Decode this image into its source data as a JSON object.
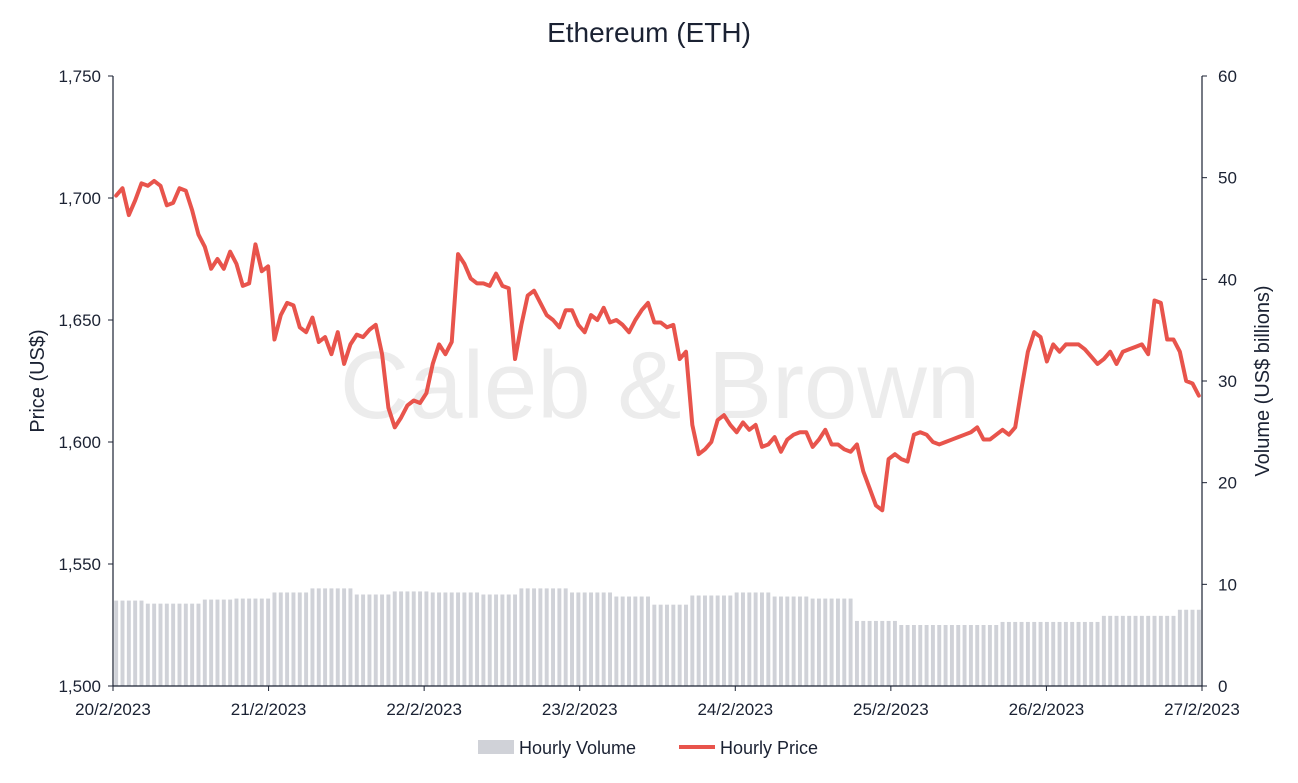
{
  "chart_data": {
    "type": "line",
    "title": "Ethereum (ETH)",
    "watermark": "Caleb & Brown",
    "ylabel": "Price (US$)",
    "y2label": "Volume (US$ billions)",
    "ylim": [
      1500,
      1750
    ],
    "y2lim": [
      0,
      60
    ],
    "yticks": [
      "1,500",
      "1,550",
      "1,600",
      "1,650",
      "1,700",
      "1,750"
    ],
    "y2ticks": [
      "0",
      "10",
      "20",
      "30",
      "40",
      "50",
      "60"
    ],
    "xticks": [
      "20/2/2023",
      "21/2/2023",
      "22/2/2023",
      "23/2/2023",
      "24/2/2023",
      "25/2/2023",
      "26/2/2023",
      "27/2/2023"
    ],
    "grid": false,
    "legend_position": "bottom-center",
    "colors": {
      "price": "#e8544c",
      "volume": "#d0d2d8",
      "text": "#1b2233"
    },
    "series": [
      {
        "name": "Hourly Volume",
        "type": "bar",
        "axis": "right",
        "values_source": "volume"
      },
      {
        "name": "Hourly Price",
        "type": "line",
        "axis": "left",
        "values_source": "price"
      }
    ],
    "price": [
      1701,
      1704,
      1693,
      1699,
      1706,
      1705,
      1707,
      1705,
      1697,
      1698,
      1704,
      1703,
      1695,
      1685,
      1680,
      1671,
      1675,
      1671,
      1678,
      1673,
      1664,
      1665,
      1681,
      1670,
      1672,
      1642,
      1652,
      1657,
      1656,
      1647,
      1645,
      1651,
      1641,
      1643,
      1636,
      1645,
      1632,
      1640,
      1644,
      1643,
      1646,
      1648,
      1636,
      1614,
      1606,
      1610,
      1615,
      1617,
      1616,
      1620,
      1632,
      1640,
      1636,
      1641,
      1677,
      1673,
      1667,
      1665,
      1665,
      1664,
      1669,
      1664,
      1663,
      1634,
      1648,
      1660,
      1662,
      1657,
      1652,
      1650,
      1647,
      1654,
      1654,
      1648,
      1645,
      1652,
      1650,
      1655,
      1649,
      1650,
      1648,
      1645,
      1650,
      1654,
      1657,
      1649,
      1649,
      1647,
      1648,
      1634,
      1637,
      1607,
      1595,
      1597,
      1600,
      1609,
      1611,
      1607,
      1604,
      1608,
      1605,
      1607,
      1598,
      1599,
      1602,
      1596,
      1601,
      1603,
      1604,
      1604,
      1598,
      1601,
      1605,
      1599,
      1599,
      1597,
      1596,
      1599,
      1588,
      1581,
      1574,
      1572,
      1593,
      1595,
      1593,
      1592,
      1603,
      1604,
      1603,
      1600,
      1599,
      1600,
      1601,
      1602,
      1603,
      1604,
      1606,
      1601,
      1601,
      1603,
      1605,
      1603,
      1606,
      1622,
      1637,
      1645,
      1643,
      1633,
      1640,
      1637,
      1640,
      1640,
      1640,
      1638,
      1635,
      1632,
      1634,
      1637,
      1632,
      1637,
      1638,
      1639,
      1640,
      1636,
      1658,
      1657,
      1642,
      1642,
      1637,
      1625,
      1624,
      1619
    ]
  },
  "legend": {
    "volume_label": "Hourly Volume",
    "price_label": "Hourly Price"
  }
}
